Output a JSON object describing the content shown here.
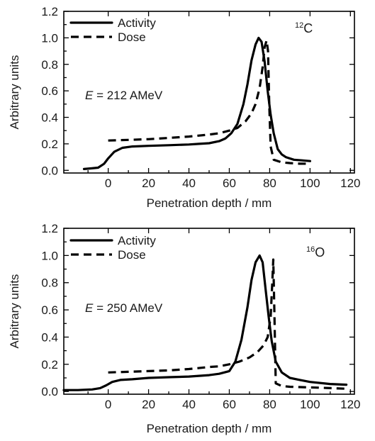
{
  "chart_data": [
    {
      "type": "line",
      "title": "",
      "xlabel": "Penetration depth / mm",
      "ylabel": "Arbitrary units",
      "xlim": [
        -22,
        122
      ],
      "ylim": [
        -0.02,
        1.2
      ],
      "xticks": [
        0,
        20,
        40,
        60,
        80,
        100,
        120
      ],
      "yticks": [
        0.0,
        0.2,
        0.4,
        0.6,
        0.8,
        1.0,
        1.2
      ],
      "xtick_labels": [
        "0",
        "20",
        "40",
        "60",
        "80",
        "100",
        "120"
      ],
      "ytick_labels": [
        "0.0",
        "0.2",
        "0.4",
        "0.6",
        "0.8",
        "1.0",
        "1.2"
      ],
      "grid": false,
      "legend_position": "top-left",
      "ion": {
        "mass_number": "12",
        "symbol": "C"
      },
      "annotation": {
        "variable": "E",
        "text": " = 212 AMeV"
      },
      "series": [
        {
          "name": "Activity",
          "style": "solid",
          "x": [
            -12,
            -5,
            -2,
            0,
            3,
            7,
            12,
            20,
            30,
            40,
            45,
            50,
            55,
            58,
            61,
            64,
            67,
            69,
            71,
            73,
            74.5,
            76,
            77.5,
            79,
            80.5,
            82,
            84,
            86,
            88,
            92,
            96,
            100
          ],
          "y": [
            0.01,
            0.02,
            0.05,
            0.09,
            0.14,
            0.17,
            0.18,
            0.185,
            0.19,
            0.195,
            0.2,
            0.205,
            0.22,
            0.24,
            0.28,
            0.35,
            0.5,
            0.65,
            0.83,
            0.95,
            1.0,
            0.97,
            0.82,
            0.6,
            0.42,
            0.28,
            0.16,
            0.12,
            0.1,
            0.08,
            0.075,
            0.07
          ]
        },
        {
          "name": "Dose",
          "style": "dashed",
          "x": [
            0,
            10,
            20,
            30,
            40,
            50,
            55,
            60,
            64,
            68,
            71,
            73,
            75,
            76.5,
            77.5,
            78.5,
            79.2,
            79.8,
            80.5,
            82,
            86,
            90,
            95,
            100
          ],
          "y": [
            0.225,
            0.23,
            0.235,
            0.245,
            0.255,
            0.27,
            0.28,
            0.3,
            0.32,
            0.37,
            0.43,
            0.5,
            0.62,
            0.78,
            0.93,
            0.98,
            0.9,
            0.5,
            0.18,
            0.08,
            0.06,
            0.055,
            0.05,
            0.05
          ]
        }
      ]
    },
    {
      "type": "line",
      "title": "",
      "xlabel": "Penetration depth / mm",
      "ylabel": "Arbitrary units",
      "xlim": [
        -22,
        122
      ],
      "ylim": [
        -0.02,
        1.2
      ],
      "xticks": [
        0,
        20,
        40,
        60,
        80,
        100,
        120
      ],
      "yticks": [
        0.0,
        0.2,
        0.4,
        0.6,
        0.8,
        1.0,
        1.2
      ],
      "xtick_labels": [
        "0",
        "20",
        "40",
        "60",
        "80",
        "100",
        "120"
      ],
      "ytick_labels": [
        "0.0",
        "0.2",
        "0.4",
        "0.6",
        "0.8",
        "1.0",
        "1.2"
      ],
      "grid": false,
      "legend_position": "top-left",
      "ion": {
        "mass_number": "16",
        "symbol": "O"
      },
      "annotation": {
        "variable": "E",
        "text": " = 250 AMeV"
      },
      "series": [
        {
          "name": "Activity",
          "style": "solid",
          "x": [
            -22,
            -15,
            -8,
            -4,
            -1,
            2,
            6,
            12,
            20,
            30,
            40,
            50,
            55,
            60,
            63,
            66,
            69,
            71,
            73,
            75,
            76.5,
            78,
            79.5,
            81,
            83,
            86,
            90,
            95,
            100,
            110,
            118
          ],
          "y": [
            0.01,
            0.01,
            0.015,
            0.025,
            0.045,
            0.07,
            0.085,
            0.09,
            0.1,
            0.105,
            0.11,
            0.12,
            0.13,
            0.15,
            0.22,
            0.38,
            0.62,
            0.82,
            0.95,
            1.0,
            0.95,
            0.75,
            0.55,
            0.37,
            0.22,
            0.14,
            0.1,
            0.085,
            0.07,
            0.055,
            0.05
          ]
        },
        {
          "name": "Dose",
          "style": "dashed",
          "x": [
            0,
            10,
            20,
            30,
            40,
            50,
            55,
            60,
            65,
            70,
            74,
            77,
            79,
            80.5,
            81.3,
            81.8,
            82.3,
            83,
            86,
            90,
            100,
            110,
            118
          ],
          "y": [
            0.14,
            0.145,
            0.15,
            0.155,
            0.165,
            0.18,
            0.185,
            0.2,
            0.22,
            0.25,
            0.29,
            0.34,
            0.4,
            0.55,
            0.8,
            0.97,
            0.6,
            0.06,
            0.04,
            0.035,
            0.03,
            0.025,
            0.02
          ]
        }
      ]
    }
  ]
}
